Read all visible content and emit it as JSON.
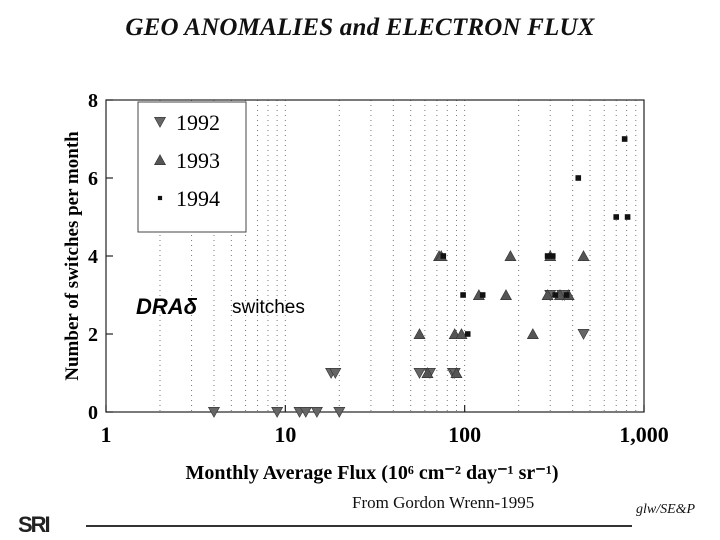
{
  "page": {
    "title": "GEO ANOMALIES and ELECTRON FLUX",
    "source_note": "From Gordon Wrenn-1995",
    "credit": "glw/SE&P",
    "logo_text": "SRI"
  },
  "chart_data": {
    "type": "scatter",
    "title": "GEO ANOMALIES and ELECTRON FLUX",
    "xlabel": "Monthly Average Flux (10⁶ cm⁻² day⁻¹ sr⁻¹)",
    "ylabel": "Number of switches per month",
    "x_scale": "log",
    "xlim": [
      1,
      1000
    ],
    "ylim": [
      0,
      8
    ],
    "x_ticks": [
      "1",
      "10",
      "100",
      "1,000"
    ],
    "y_ticks": [
      "0",
      "2",
      "4",
      "6",
      "8"
    ],
    "grid": "vertical dotted",
    "legend_position": "top-left",
    "annotation": {
      "symbol": "DRAδ",
      "text": "switches"
    },
    "series": [
      {
        "name": "1992",
        "marker": "triangle-down",
        "points": [
          [
            4,
            0
          ],
          [
            9,
            0
          ],
          [
            12,
            0
          ],
          [
            13,
            0
          ],
          [
            15,
            0
          ],
          [
            20,
            0
          ],
          [
            18,
            1
          ],
          [
            19,
            1
          ],
          [
            56,
            1
          ],
          [
            64,
            1
          ],
          [
            86,
            1
          ],
          [
            88,
            1
          ],
          [
            300,
            3
          ],
          [
            350,
            3
          ],
          [
            360,
            3
          ],
          [
            460,
            2
          ]
        ]
      },
      {
        "name": "1993",
        "marker": "triangle-up",
        "points": [
          [
            56,
            2
          ],
          [
            62,
            1
          ],
          [
            72,
            4
          ],
          [
            74,
            4
          ],
          [
            88,
            2
          ],
          [
            90,
            1
          ],
          [
            96,
            2
          ],
          [
            120,
            3
          ],
          [
            170,
            3
          ],
          [
            180,
            4
          ],
          [
            240,
            2
          ],
          [
            290,
            3
          ],
          [
            300,
            4
          ],
          [
            340,
            3
          ],
          [
            380,
            3
          ],
          [
            460,
            4
          ]
        ]
      },
      {
        "name": "1994",
        "marker": "square",
        "points": [
          [
            76,
            4
          ],
          [
            98,
            3
          ],
          [
            104,
            2
          ],
          [
            126,
            3
          ],
          [
            290,
            4
          ],
          [
            310,
            4
          ],
          [
            320,
            3
          ],
          [
            370,
            3
          ],
          [
            430,
            6
          ],
          [
            700,
            5
          ],
          [
            780,
            7
          ],
          [
            810,
            5
          ]
        ]
      }
    ]
  }
}
